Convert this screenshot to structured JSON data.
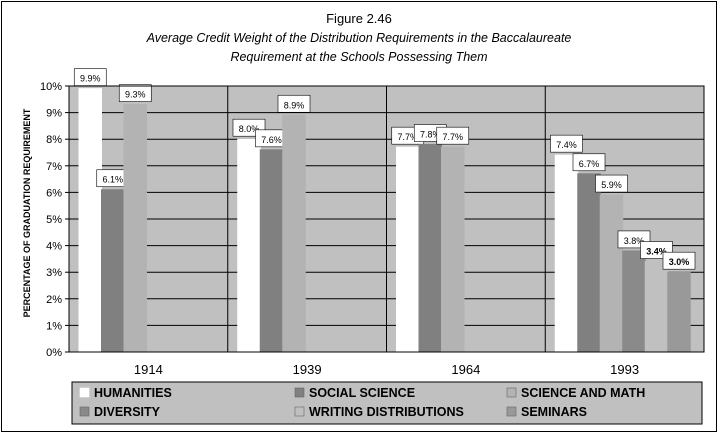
{
  "figure_label": "Figure 2.46",
  "chart_data": {
    "type": "bar",
    "title": "Average Credit Weight of the Distribution Requirements in the Baccalaureate",
    "subtitle": "Requirement at the Schools Possessing Them",
    "xlabel": "",
    "ylabel": "PERCENTAGE OF GRADUATION REQUIREMENT",
    "ylim": [
      0,
      10
    ],
    "y_ticks": [
      "0%",
      "1%",
      "2%",
      "3%",
      "4%",
      "5%",
      "6%",
      "7%",
      "8%",
      "9%",
      "10%"
    ],
    "y_tick_values": [
      0,
      1,
      2,
      3,
      4,
      5,
      6,
      7,
      8,
      9,
      10
    ],
    "grid": "horizontal",
    "legend_position": "bottom",
    "categories": [
      "1914",
      "1939",
      "1964",
      "1993"
    ],
    "series": [
      {
        "name": "HUMANITIES",
        "color": "#ffffff",
        "values": [
          9.9,
          8.0,
          7.7,
          7.4
        ],
        "labels": [
          "9.9%",
          "8.0%",
          "7.7%",
          "7.4%"
        ]
      },
      {
        "name": "SOCIAL SCIENCE",
        "color": "#808080",
        "values": [
          6.1,
          7.6,
          7.8,
          6.7
        ],
        "labels": [
          "6.1%",
          "7.6%",
          "7.8%",
          "6.7%"
        ]
      },
      {
        "name": "SCIENCE AND MATH",
        "color": "#b3b3b3",
        "values": [
          9.3,
          8.9,
          7.7,
          5.9
        ],
        "labels": [
          "9.3%",
          "8.9%",
          "7.7%",
          "5.9%"
        ]
      },
      {
        "name": "DIVERSITY",
        "color": "#8a8a8a",
        "values": [
          null,
          null,
          null,
          3.8
        ],
        "labels": [
          null,
          null,
          null,
          "3.8%"
        ]
      },
      {
        "name": "WRITING DISTRIBUTIONS",
        "color": "#c0c0c0",
        "values": [
          null,
          null,
          null,
          3.4
        ],
        "labels": [
          null,
          null,
          null,
          "3.4%"
        ]
      },
      {
        "name": "SEMINARS",
        "color": "#999999",
        "values": [
          null,
          null,
          null,
          3.0
        ],
        "labels": [
          null,
          null,
          null,
          "3.0%"
        ]
      }
    ]
  }
}
